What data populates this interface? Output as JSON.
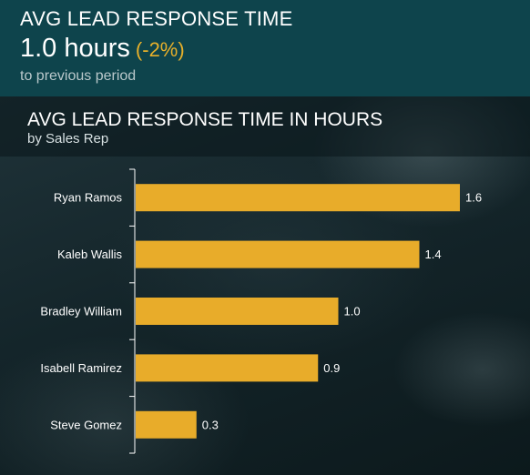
{
  "kpi": {
    "title": "AVG LEAD RESPONSE TIME",
    "value": "1.0 hours",
    "change": "(-2%)",
    "subtitle": "to previous period"
  },
  "colors": {
    "kpi_background": "#0e444c",
    "bar": "#e8ac2a",
    "change_text": "#e8b02a",
    "axis": "#ffffff"
  },
  "chart_data": {
    "type": "bar",
    "orientation": "horizontal",
    "title": "AVG LEAD RESPONSE TIME IN HOURS",
    "subtitle": "by Sales Rep",
    "categories": [
      "Ryan Ramos",
      "Kaleb Wallis",
      "Bradley William",
      "Isabell Ramirez",
      "Steve Gomez"
    ],
    "values": [
      1.6,
      1.4,
      1.0,
      0.9,
      0.3
    ],
    "value_labels": [
      "1.6",
      "1.4",
      "1.0",
      "0.9",
      "0.3"
    ],
    "xlim": [
      0,
      1.6
    ],
    "grid": false,
    "legend": "none"
  }
}
